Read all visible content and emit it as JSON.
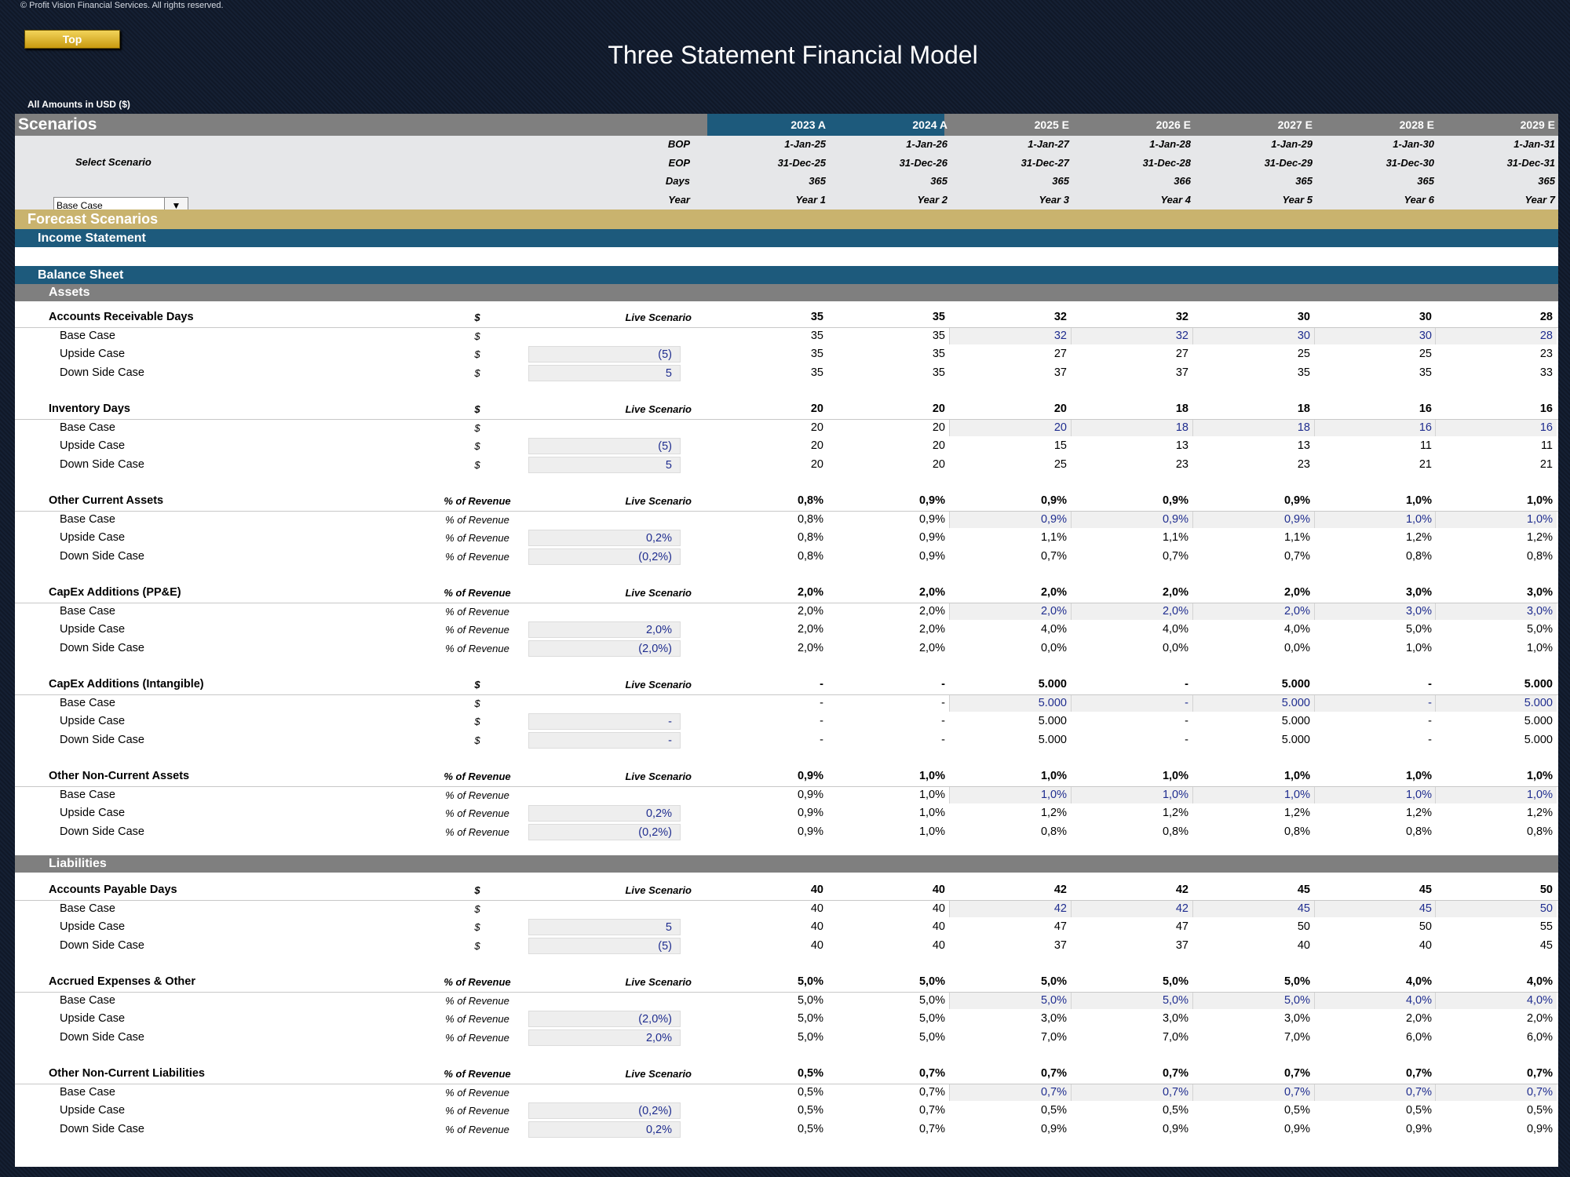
{
  "copyright": "© Profit Vision Financial Services. All rights reserved.",
  "top_button": "Top",
  "title": "Three Statement Financial Model",
  "amounts_label": "All Amounts in  USD ($)",
  "header": {
    "scenarios_label": "Scenarios",
    "years": [
      "2023 A",
      "2024 A",
      "2025 E",
      "2026 E",
      "2027 E",
      "2028 E",
      "2029 E"
    ],
    "bop_label": "BOP",
    "eop_label": "EOP",
    "days_label": "Days",
    "year_label": "Year",
    "bop": [
      "1-Jan-25",
      "1-Jan-26",
      "1-Jan-27",
      "1-Jan-28",
      "1-Jan-29",
      "1-Jan-30",
      "1-Jan-31"
    ],
    "eop": [
      "31-Dec-25",
      "31-Dec-26",
      "31-Dec-27",
      "31-Dec-28",
      "31-Dec-29",
      "31-Dec-30",
      "31-Dec-31"
    ],
    "days": [
      "365",
      "365",
      "365",
      "366",
      "365",
      "365",
      "365"
    ],
    "year_n": [
      "Year 1",
      "Year 2",
      "Year 3",
      "Year 4",
      "Year 5",
      "Year 6",
      "Year 7"
    ],
    "select_scenario_label": "Select Scenario",
    "selected_scenario": "Base Case"
  },
  "sections": {
    "forecast": "Forecast Scenarios",
    "income": "Income Statement",
    "balance": "Balance Sheet",
    "assets": "Assets",
    "liabilities": "Liabilities"
  },
  "labels": {
    "live": "Live Scenario",
    "base": "Base Case",
    "upside": "Upside Case",
    "down": "Down Side Case"
  },
  "groups": [
    {
      "name": "Accounts Receivable Days",
      "unit": "$",
      "live": [
        "35",
        "35",
        "32",
        "32",
        "30",
        "30",
        "28"
      ],
      "base": [
        "35",
        "35",
        "32",
        "32",
        "30",
        "30",
        "28"
      ],
      "up_adj": "(5)",
      "up": [
        "35",
        "35",
        "27",
        "27",
        "25",
        "25",
        "23"
      ],
      "down_adj": "5",
      "down": [
        "35",
        "35",
        "37",
        "37",
        "35",
        "35",
        "33"
      ]
    },
    {
      "name": "Inventory Days",
      "unit": "$",
      "live": [
        "20",
        "20",
        "20",
        "18",
        "18",
        "16",
        "16"
      ],
      "base": [
        "20",
        "20",
        "20",
        "18",
        "18",
        "16",
        "16"
      ],
      "up_adj": "(5)",
      "up": [
        "20",
        "20",
        "15",
        "13",
        "13",
        "11",
        "11"
      ],
      "down_adj": "5",
      "down": [
        "20",
        "20",
        "25",
        "23",
        "23",
        "21",
        "21"
      ]
    },
    {
      "name": "Other Current Assets",
      "unit": "% of Revenue",
      "live": [
        "0,8%",
        "0,9%",
        "0,9%",
        "0,9%",
        "0,9%",
        "1,0%",
        "1,0%"
      ],
      "base": [
        "0,8%",
        "0,9%",
        "0,9%",
        "0,9%",
        "0,9%",
        "1,0%",
        "1,0%"
      ],
      "up_adj": "0,2%",
      "up": [
        "0,8%",
        "0,9%",
        "1,1%",
        "1,1%",
        "1,1%",
        "1,2%",
        "1,2%"
      ],
      "down_adj": "(0,2%)",
      "down": [
        "0,8%",
        "0,9%",
        "0,7%",
        "0,7%",
        "0,7%",
        "0,8%",
        "0,8%"
      ]
    },
    {
      "name": "CapEx Additions (PP&E)",
      "unit": "% of Revenue",
      "live": [
        "2,0%",
        "2,0%",
        "2,0%",
        "2,0%",
        "2,0%",
        "3,0%",
        "3,0%"
      ],
      "base": [
        "2,0%",
        "2,0%",
        "2,0%",
        "2,0%",
        "2,0%",
        "3,0%",
        "3,0%"
      ],
      "up_adj": "2,0%",
      "up": [
        "2,0%",
        "2,0%",
        "4,0%",
        "4,0%",
        "4,0%",
        "5,0%",
        "5,0%"
      ],
      "down_adj": "(2,0%)",
      "down": [
        "2,0%",
        "2,0%",
        "0,0%",
        "0,0%",
        "0,0%",
        "1,0%",
        "1,0%"
      ]
    },
    {
      "name": "CapEx Additions (Intangible)",
      "unit": "$",
      "live": [
        "-",
        "-",
        "5.000",
        "-",
        "5.000",
        "-",
        "5.000"
      ],
      "base": [
        "-",
        "-",
        "5.000",
        "-",
        "5.000",
        "-",
        "5.000"
      ],
      "up_adj": "-",
      "up": [
        "-",
        "-",
        "5.000",
        "-",
        "5.000",
        "-",
        "5.000"
      ],
      "down_adj": "-",
      "down": [
        "-",
        "-",
        "5.000",
        "-",
        "5.000",
        "-",
        "5.000"
      ]
    },
    {
      "name": "Other Non-Current Assets",
      "unit": "% of Revenue",
      "live": [
        "0,9%",
        "1,0%",
        "1,0%",
        "1,0%",
        "1,0%",
        "1,0%",
        "1,0%"
      ],
      "base": [
        "0,9%",
        "1,0%",
        "1,0%",
        "1,0%",
        "1,0%",
        "1,0%",
        "1,0%"
      ],
      "up_adj": "0,2%",
      "up": [
        "0,9%",
        "1,0%",
        "1,2%",
        "1,2%",
        "1,2%",
        "1,2%",
        "1,2%"
      ],
      "down_adj": "(0,2%)",
      "down": [
        "0,9%",
        "1,0%",
        "0,8%",
        "0,8%",
        "0,8%",
        "0,8%",
        "0,8%"
      ]
    },
    {
      "name": "Accounts Payable Days",
      "unit": "$",
      "live": [
        "40",
        "40",
        "42",
        "42",
        "45",
        "45",
        "50"
      ],
      "base": [
        "40",
        "40",
        "42",
        "42",
        "45",
        "45",
        "50"
      ],
      "up_adj": "5",
      "up": [
        "40",
        "40",
        "47",
        "47",
        "50",
        "50",
        "55"
      ],
      "down_adj": "(5)",
      "down": [
        "40",
        "40",
        "37",
        "37",
        "40",
        "40",
        "45"
      ]
    },
    {
      "name": "Accrued Expenses & Other",
      "unit": "% of Revenue",
      "live": [
        "5,0%",
        "5,0%",
        "5,0%",
        "5,0%",
        "5,0%",
        "4,0%",
        "4,0%"
      ],
      "base": [
        "5,0%",
        "5,0%",
        "5,0%",
        "5,0%",
        "5,0%",
        "4,0%",
        "4,0%"
      ],
      "up_adj": "(2,0%)",
      "up": [
        "5,0%",
        "5,0%",
        "3,0%",
        "3,0%",
        "3,0%",
        "2,0%",
        "2,0%"
      ],
      "down_adj": "2,0%",
      "down": [
        "5,0%",
        "5,0%",
        "7,0%",
        "7,0%",
        "7,0%",
        "6,0%",
        "6,0%"
      ]
    },
    {
      "name": "Other Non-Current Liabilities",
      "unit": "% of Revenue",
      "live": [
        "0,5%",
        "0,7%",
        "0,7%",
        "0,7%",
        "0,7%",
        "0,7%",
        "0,7%"
      ],
      "base": [
        "0,5%",
        "0,7%",
        "0,7%",
        "0,7%",
        "0,7%",
        "0,7%",
        "0,7%"
      ],
      "up_adj": "(0,2%)",
      "up": [
        "0,5%",
        "0,7%",
        "0,5%",
        "0,5%",
        "0,5%",
        "0,5%",
        "0,5%"
      ],
      "down_adj": "0,2%",
      "down": [
        "0,5%",
        "0,7%",
        "0,9%",
        "0,9%",
        "0,9%",
        "0,9%",
        "0,9%"
      ]
    }
  ]
}
